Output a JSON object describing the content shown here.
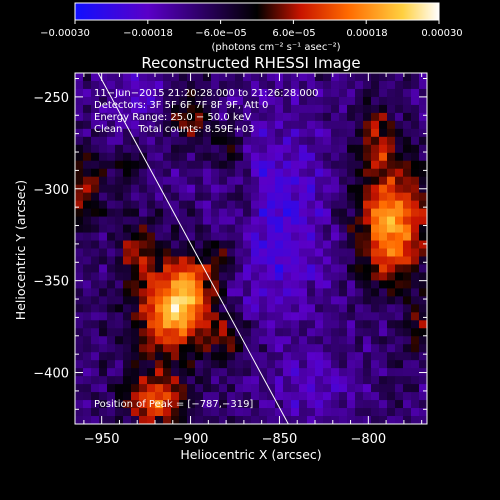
{
  "chart_data": {
    "type": "heatmap",
    "title": "Reconstructed RHESSI Image",
    "xlabel": "Heliocentric X (arcsec)",
    "ylabel": "Heliocentric Y (arcsec)",
    "xlim": [
      -965,
      -767
    ],
    "ylim": [
      -428,
      -237
    ],
    "xticks": [
      -950,
      -900,
      -850,
      -800
    ],
    "yticks": [
      -250,
      -300,
      -350,
      -400
    ],
    "xtick_labels": [
      "−950",
      "−900",
      "−850",
      "−800"
    ],
    "ytick_labels": [
      "−250",
      "−300",
      "−350",
      "−400"
    ],
    "colorbar": {
      "range": [
        -0.0003,
        0.0003
      ],
      "tick_labels": [
        "−0.00030",
        "−0.00018",
        "−6.0e−05",
        "6.0e−05",
        "0.00018",
        "0.00030"
      ],
      "unit_text": "(photons cm⁻² s⁻¹ asec⁻²)",
      "colormap": [
        "#1010ff",
        "#5a00c8",
        "#000000",
        "#c81400",
        "#ff6a00",
        "#ffd040",
        "#ffffff"
      ]
    },
    "annotations": [
      "11−Jun−2015 21:20:28.000 to 21:26:28.000",
      "Detectors: 3F 5F 6F 7F 8F 9F, Att 0",
      "Energy Range: 25.0 − 50.0 keV",
      "Clean     Total counts: 8.59E+03"
    ],
    "peak_label": "Position of Peak = [−787,−319]",
    "limb_line": [
      {
        "x": -952,
        "y": -237
      },
      {
        "x": -845,
        "y": -428
      }
    ],
    "sources": [
      {
        "x": -787,
        "y": -319,
        "amp": 0.0003,
        "sx": 14,
        "sy": 22
      },
      {
        "x": -795,
        "y": -272,
        "amp": 0.00014,
        "sx": 8,
        "sy": 12
      },
      {
        "x": -912,
        "y": -368,
        "amp": 0.00025,
        "sx": 14,
        "sy": 18
      },
      {
        "x": -900,
        "y": -355,
        "amp": 0.00018,
        "sx": 10,
        "sy": 14
      },
      {
        "x": -920,
        "y": -415,
        "amp": 0.00022,
        "sx": 12,
        "sy": 10
      },
      {
        "x": -930,
        "y": -335,
        "amp": 0.00015,
        "sx": 8,
        "sy": 12
      },
      {
        "x": -960,
        "y": -300,
        "amp": 0.00015,
        "sx": 7,
        "sy": 14
      },
      {
        "x": -900,
        "y": -260,
        "amp": 0.00015,
        "sx": 8,
        "sy": 10
      },
      {
        "x": -878,
        "y": -280,
        "amp": 0.00012,
        "sx": 7,
        "sy": 9
      },
      {
        "x": -870,
        "y": -305,
        "amp": 0.0001,
        "sx": 7,
        "sy": 8
      },
      {
        "x": -880,
        "y": -335,
        "amp": 0.00012,
        "sx": 8,
        "sy": 9
      },
      {
        "x": -880,
        "y": -380,
        "amp": 0.00012,
        "sx": 9,
        "sy": 9
      },
      {
        "x": -935,
        "y": -290,
        "amp": 0.0001,
        "sx": 6,
        "sy": 8
      },
      {
        "x": -770,
        "y": -375,
        "amp": 0.00012,
        "sx": 6,
        "sy": 10
      },
      {
        "x": -852,
        "y": -318,
        "amp": -0.00012,
        "sx": 22,
        "sy": 40
      },
      {
        "x": -832,
        "y": -410,
        "amp": -8e-05,
        "sx": 14,
        "sy": 12
      },
      {
        "x": -930,
        "y": -250,
        "amp": -8e-05,
        "sx": 12,
        "sy": 12
      }
    ]
  }
}
